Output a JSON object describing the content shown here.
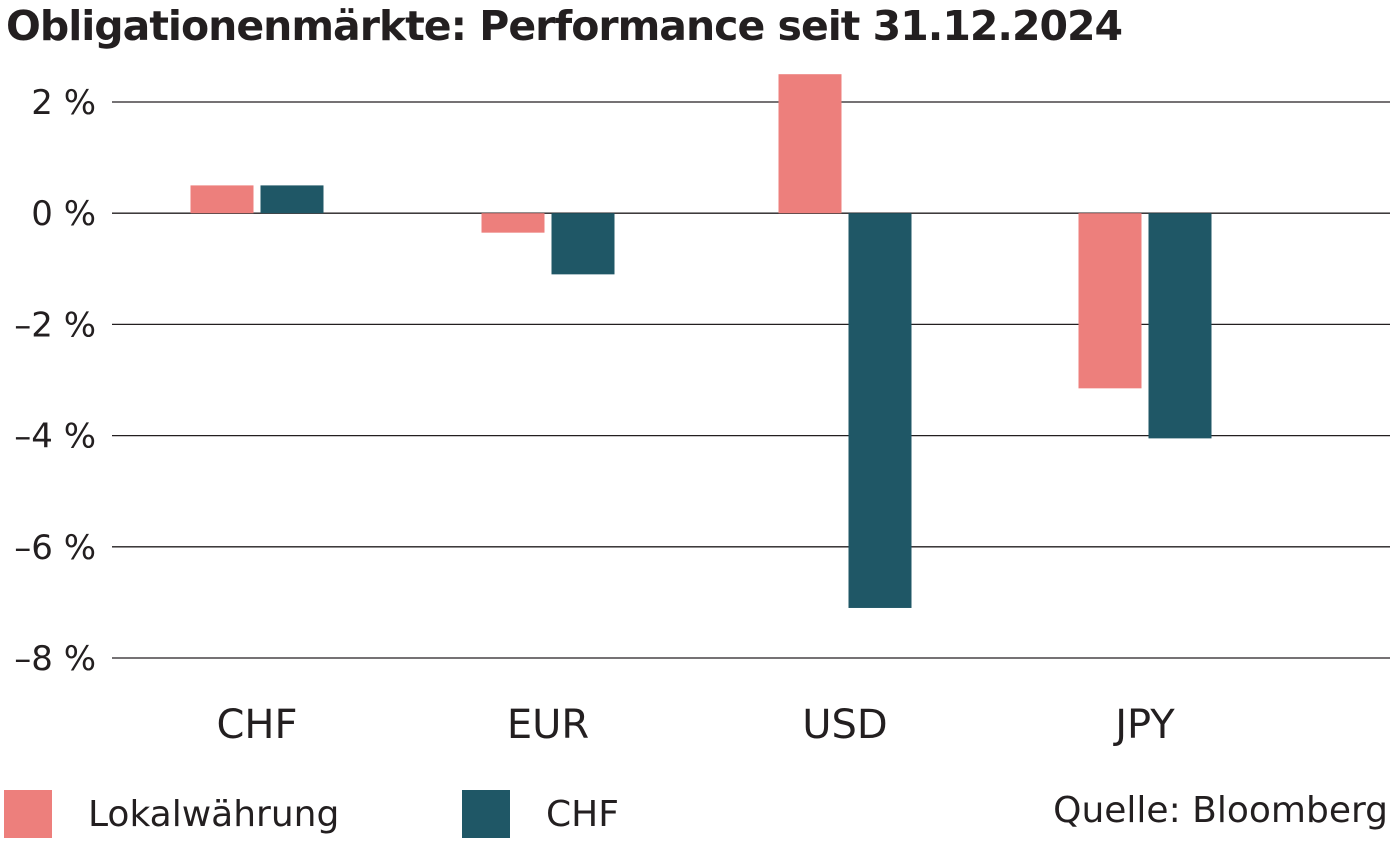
{
  "title": "Obligationenmärkte: Performance seit 31.12.2024",
  "source": "Quelle: Bloomberg",
  "colors": {
    "local": "#ed7f7c",
    "chf": "#1f5766",
    "grid": "#231f20"
  },
  "legend": [
    {
      "label": "Lokalwährung",
      "color": "#ed7f7c"
    },
    {
      "label": "CHF",
      "color": "#1f5766"
    }
  ],
  "chart_data": {
    "type": "bar",
    "title": "Obligationenmärkte: Performance seit 31.12.2024",
    "categories": [
      "CHF",
      "EUR",
      "USD",
      "JPY"
    ],
    "series": [
      {
        "name": "Lokalwährung",
        "values": [
          0.5,
          -0.35,
          2.5,
          -3.15
        ]
      },
      {
        "name": "CHF",
        "values": [
          0.5,
          -1.1,
          -7.1,
          -4.05
        ]
      }
    ],
    "yticks": [
      2,
      0,
      -2,
      -4,
      -6,
      -8
    ],
    "ytick_labels": [
      "2 %",
      "0 %",
      "–2 %",
      "–4 %",
      "–6 %",
      "–8 %"
    ],
    "ylim": [
      -8,
      2
    ],
    "xlabel": "",
    "ylabel": "",
    "grid": true,
    "legend_position": "bottom-left"
  }
}
